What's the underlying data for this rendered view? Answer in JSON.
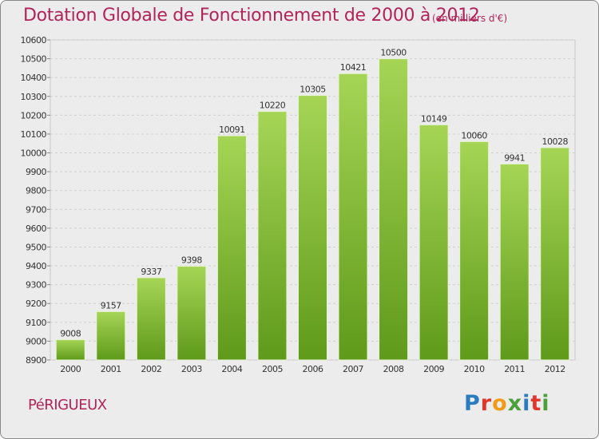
{
  "header": {
    "title": "Dotation Globale de Fonctionnement de 2000 à 2012",
    "subtitle": "(en milliers d'€)"
  },
  "footer": {
    "city": "PéRIGUEUX",
    "logo_text": "Proxiti",
    "logo_colors": [
      "#2a7bbf",
      "#e0362c",
      "#f09a1a",
      "#4aa03a",
      "#2a7bbf",
      "#e0362c",
      "#4aa03a"
    ]
  },
  "chart_data": {
    "type": "bar",
    "categories": [
      "2000",
      "2001",
      "2002",
      "2003",
      "2004",
      "2005",
      "2006",
      "2007",
      "2008",
      "2009",
      "2010",
      "2011",
      "2012"
    ],
    "values": [
      9008,
      9157,
      9337,
      9398,
      10091,
      10220,
      10305,
      10421,
      10500,
      10149,
      10060,
      9941,
      10028
    ],
    "ylim": [
      8900,
      10600
    ],
    "yticks": [
      8900,
      9000,
      9100,
      9200,
      9300,
      9400,
      9500,
      9600,
      9700,
      9800,
      9900,
      10000,
      10100,
      10200,
      10300,
      10400,
      10500,
      10600
    ],
    "grid": true,
    "bar_color_top": "#a6d556",
    "bar_color_bottom": "#5f9a1a"
  }
}
